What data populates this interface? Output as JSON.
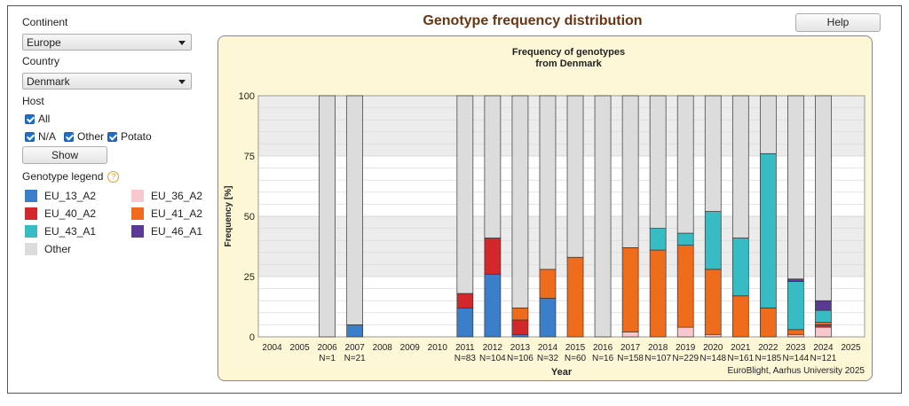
{
  "left_panel": {
    "continent_label": "Continent",
    "continent_value": "Europe",
    "country_label": "Country",
    "country_value": "Denmark",
    "host_label": "Host",
    "host_all": "All",
    "host_na": "N/A",
    "host_other": "Other",
    "host_potato": "Potato",
    "show_button": "Show",
    "legend_label": "Genotype legend",
    "legend_help_glyph": "?"
  },
  "header": {
    "title": "Genotype frequency distribution",
    "help_button": "Help"
  },
  "colors": {
    "EU_13_A2": "#3b7fcb",
    "EU_36_A2": "#f7c9cf",
    "EU_40_A2": "#d2282b",
    "EU_41_A2": "#ef6c1c",
    "EU_43_A1": "#38bcc4",
    "EU_46_A1": "#5b3a96",
    "Other": "#dcdcdc",
    "panel_bg": "#fdf7d6",
    "title_color": "#6b3512"
  },
  "chart_data": {
    "type": "bar",
    "stacked": true,
    "title": "Frequency of genotypes\nfrom Denmark",
    "title_lines": [
      "Frequency of genotypes",
      "from Denmark"
    ],
    "xlabel": "Year",
    "ylabel": "Frequency [%]",
    "ylim": [
      0,
      100
    ],
    "yticks": [
      0,
      25,
      50,
      75,
      100
    ],
    "credit": "EuroBlight, Aarhus University 2025",
    "legend": [
      "EU_13_A2",
      "EU_36_A2",
      "EU_40_A2",
      "EU_41_A2",
      "EU_43_A1",
      "EU_46_A1",
      "Other"
    ],
    "categories": [
      "2004",
      "2005",
      "2006",
      "2007",
      "2008",
      "2009",
      "2010",
      "2011",
      "2012",
      "2013",
      "2014",
      "2015",
      "2016",
      "2017",
      "2018",
      "2019",
      "2020",
      "2021",
      "2022",
      "2023",
      "2024",
      "2025"
    ],
    "n_labels": [
      "",
      "",
      "N=1",
      "N=21",
      "",
      "",
      "",
      "N=83",
      "N=104",
      "N=106",
      "N=32",
      "N=60",
      "N=16",
      "N=158",
      "N=107",
      "N=229",
      "N=148",
      "N=161",
      "N=185",
      "N=144",
      "N=121",
      ""
    ],
    "series": [
      {
        "name": "EU_13_A2",
        "values": [
          0,
          0,
          0,
          5,
          0,
          0,
          0,
          12,
          26,
          1,
          16,
          0,
          0,
          0,
          0,
          0,
          0,
          0,
          0,
          0,
          0,
          0
        ]
      },
      {
        "name": "EU_36_A2",
        "values": [
          0,
          0,
          0,
          0,
          0,
          0,
          0,
          0,
          0,
          0,
          0,
          0,
          0,
          2,
          0,
          4,
          1,
          0,
          0,
          1,
          4,
          0
        ]
      },
      {
        "name": "EU_40_A2",
        "values": [
          0,
          0,
          0,
          0,
          0,
          0,
          0,
          6,
          15,
          6,
          0,
          0,
          0,
          0,
          0,
          0,
          0,
          0,
          0,
          0,
          1,
          0
        ]
      },
      {
        "name": "EU_41_A2",
        "values": [
          0,
          0,
          0,
          0,
          0,
          0,
          0,
          0,
          0,
          5,
          12,
          33,
          0,
          35,
          36,
          34,
          27,
          17,
          12,
          2,
          1,
          0
        ]
      },
      {
        "name": "EU_43_A1",
        "values": [
          0,
          0,
          0,
          0,
          0,
          0,
          0,
          0,
          0,
          0,
          0,
          0,
          0,
          0,
          9,
          5,
          24,
          24,
          64,
          20,
          5,
          0
        ]
      },
      {
        "name": "EU_46_A1",
        "values": [
          0,
          0,
          0,
          0,
          0,
          0,
          0,
          0,
          0,
          0,
          0,
          0,
          0,
          0,
          0,
          0,
          0,
          0,
          0,
          1,
          4,
          0
        ]
      },
      {
        "name": "Other",
        "values": [
          0,
          0,
          100,
          95,
          0,
          0,
          0,
          82,
          59,
          88,
          72,
          67,
          100,
          63,
          55,
          57,
          48,
          59,
          24,
          76,
          85,
          0
        ]
      }
    ],
    "grid": true
  }
}
